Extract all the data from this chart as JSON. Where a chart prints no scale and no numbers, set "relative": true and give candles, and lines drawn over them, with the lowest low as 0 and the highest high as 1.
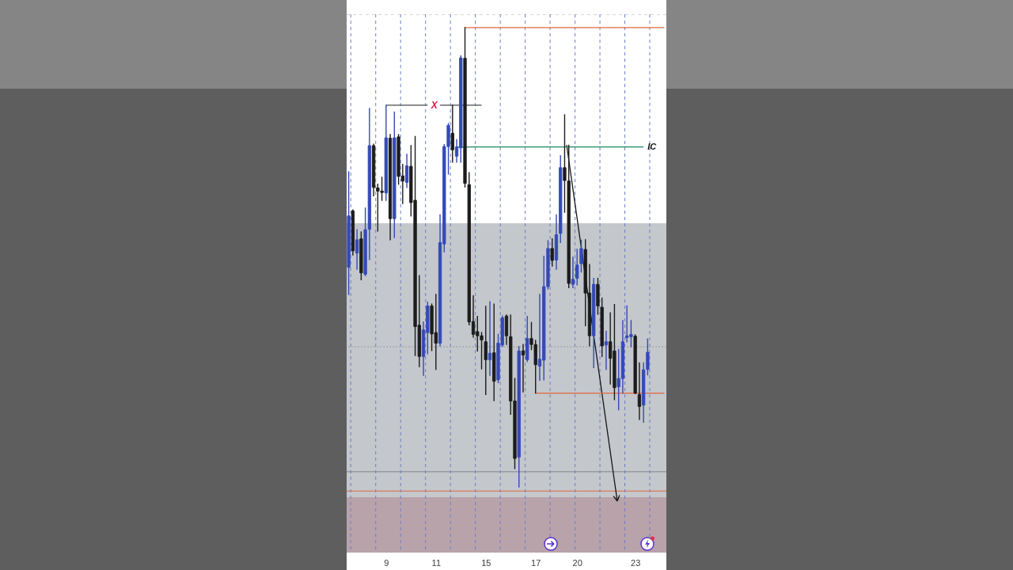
{
  "chart_data": {
    "type": "candlestick",
    "relative": true,
    "categories": [
      null,
      null,
      null,
      null,
      null,
      null,
      null,
      null,
      null,
      "9",
      null,
      null,
      null,
      null,
      null,
      null,
      null,
      null,
      null,
      null,
      null,
      "11",
      null,
      null,
      null,
      null,
      null,
      null,
      null,
      null,
      null,
      null,
      null,
      "15",
      null,
      null,
      null,
      null,
      null,
      null,
      null,
      null,
      null,
      null,
      null,
      "17",
      null,
      null,
      null,
      null,
      null,
      null,
      null,
      null,
      null,
      "20",
      null,
      null,
      null,
      null,
      null,
      null,
      null,
      null,
      null,
      null,
      null,
      null,
      null,
      "23",
      null,
      null,
      null,
      null,
      null,
      null,
      null
    ],
    "ohlc": [
      [
        0.478,
        0.686,
        0.419,
        0.59
      ],
      [
        0.601,
        0.603,
        0.505,
        0.514
      ],
      [
        0.509,
        0.56,
        0.474,
        0.538
      ],
      [
        0.54,
        0.555,
        0.451,
        0.466
      ],
      [
        0.463,
        0.607,
        0.46,
        0.56
      ],
      [
        0.561,
        0.824,
        0.495,
        0.743
      ],
      [
        0.743,
        0.746,
        0.634,
        0.652
      ],
      [
        0.651,
        0.659,
        0.557,
        0.644
      ],
      [
        0.644,
        0.674,
        0.624,
        0.641
      ],
      [
        0.64,
        0.831,
        0.624,
        0.76
      ],
      [
        0.759,
        0.767,
        0.538,
        0.584
      ],
      [
        0.584,
        0.816,
        0.543,
        0.76
      ],
      [
        0.762,
        0.767,
        0.659,
        0.676
      ],
      [
        0.677,
        0.702,
        0.617,
        0.666
      ],
      [
        0.663,
        0.724,
        0.652,
        0.699
      ],
      [
        0.698,
        0.743,
        0.59,
        0.619
      ],
      [
        0.624,
        0.763,
        0.286,
        0.349
      ],
      [
        0.352,
        0.46,
        0.262,
        0.284
      ],
      [
        0.284,
        0.359,
        0.243,
        0.342
      ],
      [
        0.336,
        0.402,
        0.29,
        0.394
      ],
      [
        0.394,
        0.398,
        0.297,
        0.333
      ],
      [
        0.336,
        0.419,
        0.256,
        0.313
      ],
      [
        0.313,
        0.592,
        0.307,
        0.532
      ],
      [
        0.529,
        0.745,
        0.512,
        0.741
      ],
      [
        0.741,
        0.791,
        0.681,
        0.787
      ],
      [
        0.77,
        0.831,
        0.707,
        0.734
      ],
      [
        0.72,
        0.756,
        0.707,
        0.74
      ],
      [
        0.738,
        0.938,
        0.707,
        0.934
      ],
      [
        0.933,
        1,
        0.653,
        0.661
      ],
      [
        0.658,
        0.684,
        0.353,
        0.359
      ],
      [
        0.36,
        0.416,
        0.326,
        0.332
      ],
      [
        0.338,
        0.371,
        0.296,
        0.329
      ],
      [
        0.329,
        0.336,
        0.257,
        0.32
      ],
      [
        0.316,
        0.393,
        0.201,
        0.277
      ],
      [
        0.277,
        0.403,
        0.243,
        0.291
      ],
      [
        0.292,
        0.398,
        0.188,
        0.23
      ],
      [
        0.233,
        0.332,
        0.227,
        0.313
      ],
      [
        0.309,
        0.372,
        0.306,
        0.368
      ],
      [
        0.372,
        0.374,
        0.31,
        0.329
      ],
      [
        0.327,
        0.374,
        0.158,
        0.187
      ],
      [
        0.187,
        0.236,
        0.04,
        0.062
      ],
      [
        0.065,
        0.305,
        0,
        0.296
      ],
      [
        0.296,
        0.31,
        0.207,
        0.287
      ],
      [
        0.277,
        0.371,
        0.273,
        0.323
      ],
      [
        0.323,
        0.358,
        0.299,
        0.31
      ],
      [
        0.31,
        0.319,
        0.204,
        0.266
      ],
      [
        0.263,
        0.419,
        0.232,
        0.278
      ],
      [
        0.276,
        0.502,
        0.233,
        0.436
      ],
      [
        0.436,
        0.536,
        0.431,
        0.519
      ],
      [
        0.519,
        0.54,
        0.481,
        0.493
      ],
      [
        0.494,
        0.592,
        0.474,
        0.549
      ],
      [
        0.552,
        0.721,
        0.532,
        0.695
      ],
      [
        0.695,
        0.81,
        0.598,
        0.667
      ],
      [
        0.666,
        0.744,
        0.434,
        0.443
      ],
      [
        0.441,
        0.5,
        0.434,
        0.452
      ],
      [
        0.454,
        0.517,
        0.44,
        0.483
      ],
      [
        0.486,
        0.537,
        0.468,
        0.519
      ],
      [
        0.517,
        0.538,
        0.351,
        0.422
      ],
      [
        0.422,
        0.484,
        0.307,
        0.329
      ],
      [
        0.329,
        0.454,
        0.26,
        0.441
      ],
      [
        0.441,
        0.454,
        0.376,
        0.394
      ],
      [
        0.391,
        0.411,
        0.284,
        0.307
      ],
      [
        0.309,
        0.339,
        0.256,
        0.316
      ],
      [
        0.316,
        0.379,
        0.224,
        0.28
      ],
      [
        0.296,
        0.397,
        0.19,
        0.216
      ],
      [
        0.218,
        0.299,
        0.168,
        0.236
      ],
      [
        0.236,
        0.362,
        0.204,
        0.316
      ],
      [
        0.325,
        0.394,
        0.316,
        0.329
      ],
      [
        0.327,
        0.362,
        0.305,
        0.332
      ],
      [
        0.328,
        0.331,
        0.203,
        0.204
      ],
      [
        0.201,
        0.27,
        0.147,
        0.175
      ],
      [
        0.178,
        0.27,
        0.141,
        0.255
      ],
      [
        0.256,
        0.322,
        0.244,
        0.293
      ],
      null,
      null,
      null,
      null
    ],
    "colors": [
      "#3449b8",
      "#1c1c1c",
      "#3449b8",
      "#1c1c1c",
      "#3449b8",
      "#3449b8",
      "#1c1c1c",
      "#1c1c1c",
      "#1c1c1c",
      "#3449b8",
      "#1c1c1c",
      "#3449b8",
      "#1c1c1c",
      "#1c1c1c",
      "#3449b8",
      "#1c1c1c",
      "#1c1c1c",
      "#1c1c1c",
      "#3449b8",
      "#3449b8",
      "#1c1c1c",
      "#1c1c1c",
      "#3449b8",
      "#3449b8",
      "#3449b8",
      "#1c1c1c",
      "#3449b8",
      "#3449b8",
      "#1c1c1c",
      "#1c1c1c",
      "#1c1c1c",
      "#1c1c1c",
      "#1c1c1c",
      "#1c1c1c",
      "#3449b8",
      "#1c1c1c",
      "#3449b8",
      "#3449b8",
      "#1c1c1c",
      "#1c1c1c",
      "#1c1c1c",
      "#3449b8",
      "#1c1c1c",
      "#3449b8",
      "#1c1c1c",
      "#1c1c1c",
      "#3449b8",
      "#3449b8",
      "#3449b8",
      "#1c1c1c",
      "#3449b8",
      "#3449b8",
      "#1c1c1c",
      "#1c1c1c",
      "#3449b8",
      "#3449b8",
      "#3449b8",
      "#1c1c1c",
      "#1c1c1c",
      "#3449b8",
      "#1c1c1c",
      "#1c1c1c",
      "#3449b8",
      "#1c1c1c",
      "#1c1c1c",
      "#3449b8",
      "#3449b8",
      "#3449b8",
      "#3449b8",
      "#1c1c1c",
      "#1c1c1c",
      "#3449b8",
      "#3449b8",
      null,
      null,
      null,
      null
    ],
    "series": [
      {
        "type": "line",
        "color": "#4a4a4a",
        "values": [
          null,
          null,
          null,
          null,
          null,
          null,
          null,
          null,
          null,
          0.831,
          0.831,
          0.831,
          0.831,
          0.831,
          0.831,
          0.831,
          0.831,
          0.831,
          0.831,
          0.831,
          null,
          null,
          0.831,
          0.831,
          0.831,
          0.831,
          0.831,
          0.831,
          0.831,
          0.831,
          0.831,
          0.831,
          0.831,
          null,
          null,
          null,
          null,
          null,
          null,
          null,
          null,
          null,
          null,
          null,
          null,
          null,
          null,
          null,
          null,
          null,
          null,
          null,
          null,
          null,
          null,
          null,
          null,
          null,
          null,
          null,
          null,
          null,
          null,
          null,
          null,
          null,
          null,
          null,
          null,
          null,
          null,
          null,
          null,
          null,
          null,
          null,
          null
        ]
      },
      {
        "type": "line",
        "name": "IC",
        "color": "#1f8a5b",
        "values": [
          null,
          null,
          null,
          null,
          null,
          null,
          null,
          null,
          null,
          null,
          null,
          null,
          null,
          null,
          null,
          null,
          null,
          null,
          null,
          null,
          null,
          null,
          null,
          null,
          null,
          null,
          0.74,
          0.74,
          0.74,
          0.74,
          0.74,
          0.74,
          0.74,
          0.74,
          0.74,
          0.74,
          0.74,
          0.74,
          0.74,
          0.74,
          0.74,
          0.74,
          0.74,
          0.74,
          0.74,
          0.74,
          0.74,
          0.74,
          0.74,
          0.74,
          0.74,
          0.74,
          0.74,
          0.74,
          0.74,
          0.74,
          0.74,
          0.74,
          0.74,
          0.74,
          0.74,
          0.74,
          0.74,
          0.74,
          0.74,
          0.74,
          0.74,
          0.74,
          0.74,
          0.74,
          0.74,
          0.74,
          null,
          null,
          null,
          null,
          null
        ]
      },
      {
        "type": "line",
        "color": "#e0693f",
        "values": [
          null,
          null,
          null,
          null,
          null,
          null,
          null,
          null,
          null,
          null,
          null,
          null,
          null,
          null,
          null,
          null,
          null,
          null,
          null,
          null,
          null,
          null,
          null,
          null,
          null,
          null,
          null,
          null,
          1,
          1,
          1,
          1,
          1,
          1,
          1,
          1,
          1,
          1,
          1,
          1,
          1,
          1,
          1,
          1,
          1,
          1,
          1,
          1,
          1,
          1,
          1,
          1,
          1,
          1,
          1,
          1,
          1,
          1,
          1,
          1,
          1,
          1,
          1,
          1,
          1,
          1,
          1,
          1,
          1,
          1,
          1,
          1,
          1,
          1,
          1,
          1,
          1
        ]
      },
      {
        "type": "line",
        "color": "#e0693f",
        "values": [
          null,
          null,
          null,
          null,
          null,
          null,
          null,
          null,
          null,
          null,
          null,
          null,
          null,
          null,
          null,
          null,
          null,
          null,
          null,
          null,
          null,
          null,
          null,
          null,
          null,
          null,
          null,
          null,
          null,
          null,
          null,
          null,
          null,
          null,
          null,
          null,
          null,
          null,
          null,
          null,
          null,
          null,
          null,
          null,
          null,
          0.204,
          0.204,
          0.204,
          0.204,
          0.204,
          0.204,
          0.204,
          0.204,
          0.204,
          0.204,
          0.204,
          0.204,
          0.204,
          0.204,
          0.204,
          0.204,
          0.204,
          0.204,
          0.204,
          0.204,
          0.204,
          0.204,
          0.204,
          0.204,
          0.204,
          0.204,
          0.204,
          0.204,
          0.204,
          0.204,
          0.204,
          0.204
        ]
      }
    ],
    "ref_lines": [
      {
        "axis": "y",
        "value": 1.029,
        "color": "#a9aebb",
        "line_style": "dashed"
      },
      {
        "axis": "y",
        "value": 0.305,
        "color": "#8a8d94",
        "line_style": "dotted"
      },
      {
        "axis": "y",
        "value": 0.033,
        "color": "#80838a",
        "line_style": "solid"
      },
      {
        "axis": "y",
        "value": -0.009,
        "color": "#e0693f",
        "line_style": "solid"
      }
    ],
    "bands": [
      {
        "axis": "y",
        "from": -0.022,
        "to": 0.574,
        "color": "#c4c7cb"
      },
      {
        "axis": "y",
        "from": -0.143,
        "to": -0.022,
        "color": "#b8a3aa"
      }
    ],
    "annotations": [
      {
        "text": "X",
        "x": "11",
        "y": 0.831
      }
    ]
  }
}
